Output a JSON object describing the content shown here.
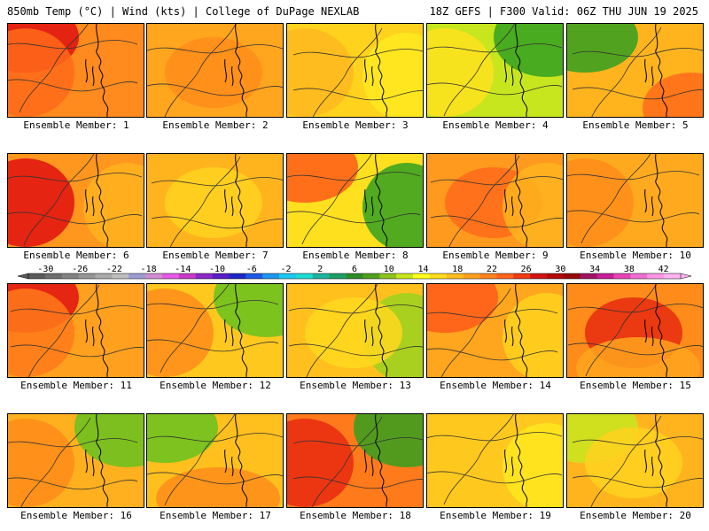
{
  "header": {
    "left_title": "850mb Temp (°C) | Wind (kts) | College of DuPage NEXLAB",
    "right_title": "18Z GEFS | F300 Valid: 06Z THU JUN 19 2025"
  },
  "members": [
    {
      "label": "Ensemble Member: 1",
      "base": "#ff8a1e",
      "blobs": [
        [
          "#e01010",
          "tl"
        ],
        [
          "#ff6a1a",
          "l"
        ]
      ]
    },
    {
      "label": "Ensemble Member: 2",
      "base": "#ffa51e",
      "blobs": [
        [
          "#ff8c1a",
          "c"
        ]
      ]
    },
    {
      "label": "Ensemble Member: 3",
      "base": "#ffd21e",
      "blobs": [
        [
          "#ffea1e",
          "r"
        ],
        [
          "#ffb81e",
          "l"
        ]
      ]
    },
    {
      "label": "Ensemble Member: 4",
      "base": "#c8e61e",
      "blobs": [
        [
          "#33a020",
          "tr"
        ],
        [
          "#ffe01e",
          "l"
        ]
      ]
    },
    {
      "label": "Ensemble Member: 5",
      "base": "#ffb41e",
      "blobs": [
        [
          "#33a020",
          "tl"
        ],
        [
          "#ff6a1a",
          "br"
        ]
      ]
    },
    {
      "label": "Ensemble Member: 6",
      "base": "#ff961e",
      "blobs": [
        [
          "#e01010",
          "l"
        ],
        [
          "#ffb41e",
          "r"
        ]
      ]
    },
    {
      "label": "Ensemble Member: 7",
      "base": "#ffb41e",
      "blobs": [
        [
          "#ffd21e",
          "c"
        ]
      ]
    },
    {
      "label": "Ensemble Member: 8",
      "base": "#ffe01e",
      "blobs": [
        [
          "#33a020",
          "r"
        ],
        [
          "#ff5a1a",
          "tl"
        ]
      ]
    },
    {
      "label": "Ensemble Member: 9",
      "base": "#ff9a1e",
      "blobs": [
        [
          "#ff6a1a",
          "c"
        ],
        [
          "#ffb41e",
          "r"
        ]
      ]
    },
    {
      "label": "Ensemble Member: 10",
      "base": "#ffaa1e",
      "blobs": [
        [
          "#ff8c1a",
          "l"
        ]
      ]
    },
    {
      "label": "Ensemble Member: 11",
      "base": "#ffa01e",
      "blobs": [
        [
          "#e01010",
          "tl"
        ],
        [
          "#ff7a1a",
          "l"
        ]
      ]
    },
    {
      "label": "Ensemble Member: 12",
      "base": "#ffc81e",
      "blobs": [
        [
          "#66c21e",
          "tr"
        ],
        [
          "#ff8c1a",
          "l"
        ]
      ]
    },
    {
      "label": "Ensemble Member: 13",
      "base": "#ffc01e",
      "blobs": [
        [
          "#9ad21e",
          "r"
        ],
        [
          "#ffd81e",
          "c"
        ]
      ]
    },
    {
      "label": "Ensemble Member: 14",
      "base": "#ffa51e",
      "blobs": [
        [
          "#ff5a1a",
          "tl"
        ],
        [
          "#ffd21e",
          "r"
        ]
      ]
    },
    {
      "label": "Ensemble Member: 15",
      "base": "#ff8c1a",
      "blobs": [
        [
          "#e82a10",
          "c"
        ],
        [
          "#ffa51e",
          "b"
        ]
      ]
    },
    {
      "label": "Ensemble Member: 16",
      "base": "#ffb01e",
      "blobs": [
        [
          "#ff8c1a",
          "l"
        ],
        [
          "#66c21e",
          "tr"
        ]
      ]
    },
    {
      "label": "Ensemble Member: 17",
      "base": "#ffc01e",
      "blobs": [
        [
          "#66c21e",
          "tl"
        ],
        [
          "#ff8c1a",
          "b"
        ]
      ]
    },
    {
      "label": "Ensemble Member: 18",
      "base": "#ff7a1a",
      "blobs": [
        [
          "#e82a10",
          "l"
        ],
        [
          "#33a020",
          "tr"
        ]
      ]
    },
    {
      "label": "Ensemble Member: 19",
      "base": "#ffc81e",
      "blobs": [
        [
          "#ffe81e",
          "r"
        ]
      ]
    },
    {
      "label": "Ensemble Member: 20",
      "base": "#ffb41e",
      "blobs": [
        [
          "#c8e61e",
          "tl"
        ],
        [
          "#ffd21e",
          "c"
        ]
      ]
    }
  ],
  "colorbar": {
    "ticks": [
      "-30",
      "-26",
      "-22",
      "-18",
      "-14",
      "-10",
      "-6",
      "-2",
      "2",
      "6",
      "10",
      "14",
      "18",
      "22",
      "26",
      "30",
      "34",
      "38",
      "42"
    ],
    "colors": [
      "#5a5a5a",
      "#6e6e6e",
      "#828282",
      "#969696",
      "#aaaaaa",
      "#bebebe",
      "#9b9bd2",
      "#d28cd2",
      "#e65ae6",
      "#c83cc8",
      "#8c28c8",
      "#5a1ec8",
      "#1e28c8",
      "#1e5ae6",
      "#1e96f0",
      "#1ec8f0",
      "#1edcd2",
      "#1eb4a0",
      "#1ea064",
      "#2d8c28",
      "#50a01e",
      "#8cc31e",
      "#c8e61e",
      "#ffff1e",
      "#ffdc1e",
      "#ffbe1e",
      "#ffa01e",
      "#ff821e",
      "#ff641e",
      "#f03c14",
      "#d21414",
      "#b40a0a",
      "#960a0a",
      "#a01464",
      "#c81e96",
      "#e646b4",
      "#f06ed2",
      "#ff96e6",
      "#ffb4f0"
    ]
  }
}
